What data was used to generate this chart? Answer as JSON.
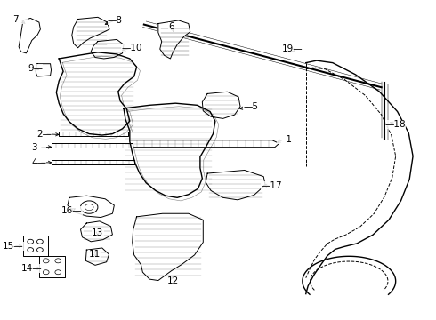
{
  "background_color": "#ffffff",
  "line_color": "#000000",
  "fig_width": 4.9,
  "fig_height": 3.6,
  "dpi": 100,
  "labels_info": [
    [
      1,
      0.65,
      0.435,
      0.627,
      0.448
    ],
    [
      2,
      0.095,
      0.418,
      0.135,
      0.421
    ],
    [
      3,
      0.082,
      0.46,
      0.118,
      0.459
    ],
    [
      4,
      0.082,
      0.508,
      0.118,
      0.508
    ],
    [
      5,
      0.572,
      0.332,
      0.54,
      0.342
    ],
    [
      6,
      0.388,
      0.082,
      0.398,
      0.105
    ],
    [
      7,
      0.038,
      0.06,
      0.055,
      0.078
    ],
    [
      8,
      0.258,
      0.062,
      0.228,
      0.078
    ],
    [
      9,
      0.073,
      0.212,
      0.088,
      0.222
    ],
    [
      10,
      0.298,
      0.148,
      0.268,
      0.158
    ],
    [
      11,
      0.21,
      0.795,
      0.218,
      0.808
    ],
    [
      12,
      0.392,
      0.88,
      0.388,
      0.855
    ],
    [
      13,
      0.218,
      0.728,
      0.218,
      0.738
    ],
    [
      14,
      0.065,
      0.84,
      0.092,
      0.84
    ],
    [
      15,
      0.022,
      0.77,
      0.05,
      0.77
    ],
    [
      16,
      0.158,
      0.658,
      0.172,
      0.648
    ],
    [
      17,
      0.62,
      0.582,
      0.595,
      0.578
    ],
    [
      18,
      0.908,
      0.388,
      0.888,
      0.378
    ],
    [
      19,
      0.668,
      0.152,
      0.68,
      0.168
    ]
  ]
}
